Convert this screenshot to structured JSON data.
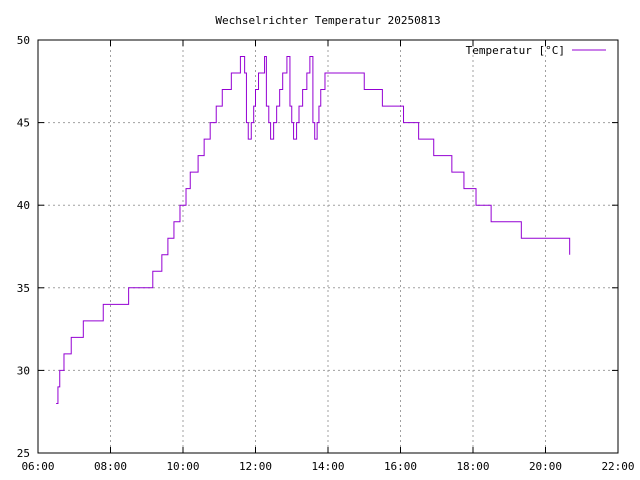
{
  "chart_data": {
    "type": "line",
    "title": "Wechselrichter Temperatur 20250813",
    "xlabel": "",
    "ylabel": "",
    "xlim": [
      "06:00",
      "22:00"
    ],
    "ylim": [
      25,
      50
    ],
    "grid": true,
    "legend_position": "top-right",
    "x_ticks": [
      "06:00",
      "08:00",
      "10:00",
      "12:00",
      "14:00",
      "16:00",
      "18:00",
      "20:00",
      "22:00"
    ],
    "y_ticks": [
      25,
      30,
      35,
      40,
      45,
      50
    ],
    "colors": {
      "series": "#9400d3",
      "grid": "#a0a0a0",
      "axis": "#000000"
    },
    "series": [
      {
        "name": "Temperatur [°C]",
        "step": true,
        "points": [
          [
            "06:30",
            28
          ],
          [
            "06:33",
            29
          ],
          [
            "06:36",
            30
          ],
          [
            "06:43",
            31
          ],
          [
            "06:55",
            32
          ],
          [
            "07:15",
            33
          ],
          [
            "07:48",
            34
          ],
          [
            "08:30",
            35
          ],
          [
            "09:10",
            36
          ],
          [
            "09:25",
            37
          ],
          [
            "09:35",
            38
          ],
          [
            "09:45",
            39
          ],
          [
            "09:55",
            40
          ],
          [
            "10:05",
            41
          ],
          [
            "10:12",
            42
          ],
          [
            "10:25",
            43
          ],
          [
            "10:35",
            44
          ],
          [
            "10:45",
            45
          ],
          [
            "10:55",
            46
          ],
          [
            "11:05",
            47
          ],
          [
            "11:20",
            48
          ],
          [
            "11:35",
            49
          ],
          [
            "11:42",
            48
          ],
          [
            "11:45",
            45
          ],
          [
            "11:48",
            44
          ],
          [
            "11:53",
            45
          ],
          [
            "11:57",
            46
          ],
          [
            "12:00",
            47
          ],
          [
            "12:05",
            48
          ],
          [
            "12:15",
            49
          ],
          [
            "12:18",
            46
          ],
          [
            "12:22",
            45
          ],
          [
            "12:25",
            44
          ],
          [
            "12:30",
            45
          ],
          [
            "12:35",
            46
          ],
          [
            "12:40",
            47
          ],
          [
            "12:45",
            48
          ],
          [
            "12:52",
            49
          ],
          [
            "12:57",
            46
          ],
          [
            "13:00",
            45
          ],
          [
            "13:03",
            44
          ],
          [
            "13:08",
            45
          ],
          [
            "13:12",
            46
          ],
          [
            "13:18",
            47
          ],
          [
            "13:25",
            48
          ],
          [
            "13:30",
            49
          ],
          [
            "13:35",
            45
          ],
          [
            "13:38",
            44
          ],
          [
            "13:42",
            45
          ],
          [
            "13:45",
            46
          ],
          [
            "13:48",
            47
          ],
          [
            "13:55",
            48
          ],
          [
            "15:00",
            47
          ],
          [
            "15:30",
            46
          ],
          [
            "16:05",
            45
          ],
          [
            "16:30",
            44
          ],
          [
            "16:55",
            43
          ],
          [
            "17:25",
            42
          ],
          [
            "17:45",
            41
          ],
          [
            "18:05",
            40
          ],
          [
            "18:30",
            39
          ],
          [
            "19:20",
            38
          ],
          [
            "20:40",
            37
          ]
        ]
      }
    ]
  }
}
